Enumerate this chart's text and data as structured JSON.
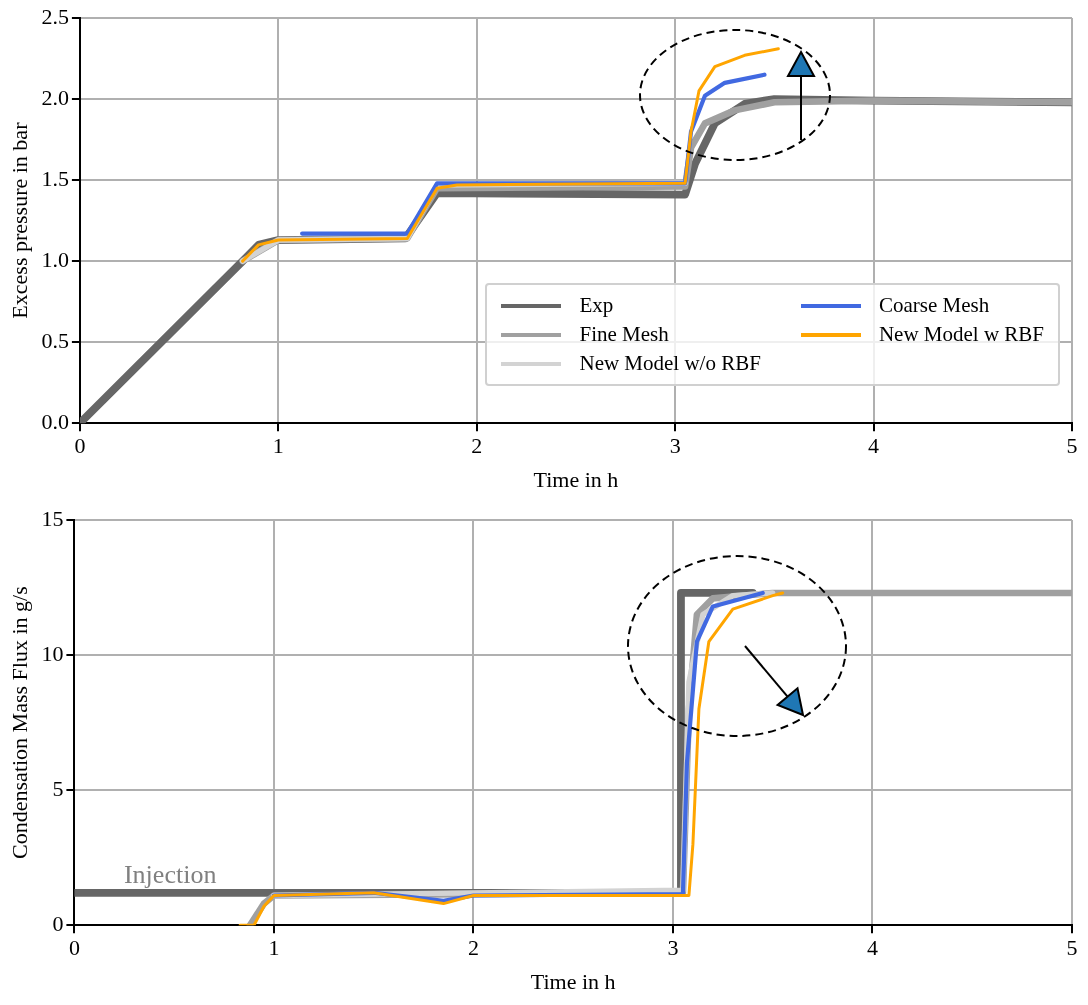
{
  "chart_data": [
    {
      "type": "line",
      "xlabel": "Time in h",
      "ylabel": "Excess pressure in bar",
      "xlim": [
        0,
        5
      ],
      "ylim": [
        0,
        2.5
      ],
      "xticks": [
        0,
        1,
        2,
        3,
        4,
        5
      ],
      "yticks": [
        {
          "value": 0,
          "label": "0.0"
        },
        {
          "value": 0.5,
          "label": "0.5"
        },
        {
          "value": 1,
          "label": "1.0"
        },
        {
          "value": 1.5,
          "label": "1.5"
        },
        {
          "value": 2,
          "label": "2.0"
        },
        {
          "value": 2.5,
          "label": "2.5"
        }
      ],
      "grid": true,
      "legend": "bottom right",
      "marker": "none",
      "line_style": "solid",
      "series": [
        {
          "name": "Exp",
          "color": "#666666",
          "x": [
            0,
            0.82,
            0.9,
            1.0,
            1.64,
            1.8,
            3.05,
            3.1,
            3.2,
            3.35,
            3.5,
            4,
            5
          ],
          "values": [
            0,
            1.0,
            1.1,
            1.13,
            1.14,
            1.42,
            1.41,
            1.6,
            1.85,
            1.97,
            2.0,
            1.99,
            1.98
          ]
        },
        {
          "name": "Fine Mesh",
          "color": "#a0a0a0",
          "x": [
            0.82,
            1.0,
            1.65,
            1.8,
            3.05,
            3.08,
            3.15,
            3.3,
            3.5,
            4,
            5
          ],
          "values": [
            1.0,
            1.13,
            1.14,
            1.45,
            1.46,
            1.7,
            1.85,
            1.93,
            1.98,
            1.99,
            1.98
          ]
        },
        {
          "name": "New Model w/o RBF",
          "color": "#d3d3d3",
          "x": [
            0.82,
            1.0,
            1.65,
            1.8,
            3.05
          ],
          "values": [
            1.0,
            1.13,
            1.14,
            1.47,
            1.48
          ]
        },
        {
          "name": "Coarse Mesh",
          "color": "#4169e1",
          "x": [
            1.12,
            1.65,
            1.8,
            3.05,
            3.08,
            3.15,
            3.25,
            3.45
          ],
          "values": [
            1.17,
            1.17,
            1.48,
            1.48,
            1.8,
            2.02,
            2.1,
            2.15
          ]
        },
        {
          "name": "New Model w RBF",
          "color": "#ffa500",
          "x": [
            0.82,
            0.9,
            1.0,
            1.65,
            1.8,
            1.9,
            3.05,
            3.08,
            3.12,
            3.2,
            3.35,
            3.52
          ],
          "values": [
            1.0,
            1.1,
            1.13,
            1.14,
            1.45,
            1.47,
            1.48,
            1.8,
            2.05,
            2.2,
            2.27,
            2.31
          ]
        }
      ]
    },
    {
      "type": "line",
      "xlabel": "Time in h",
      "ylabel": "Condensation Mass Flux in g/s",
      "xlim": [
        0,
        5
      ],
      "ylim": [
        0,
        15
      ],
      "xticks": [
        0,
        1,
        2,
        3,
        4,
        5
      ],
      "yticks": [
        0,
        5,
        10,
        15
      ],
      "grid": true,
      "marker": "none",
      "line_style": "solid",
      "annotations": [
        {
          "text": "Injection",
          "x": 0.48,
          "y": 1.2
        }
      ],
      "series": [
        {
          "color": "#666666",
          "x": [
            0,
            3.04,
            3.04,
            3.4
          ],
          "values": [
            1.2,
            1.2,
            12.3,
            12.3
          ]
        },
        {
          "color": "#a0a0a0",
          "x": [
            0.88,
            0.95,
            1.0,
            2.0,
            3.05,
            3.08,
            3.12,
            3.2,
            3.5,
            5
          ],
          "values": [
            0,
            0.8,
            1.1,
            1.15,
            1.2,
            8,
            11.5,
            12.1,
            12.3,
            12.3
          ]
        },
        {
          "color": "#d3d3d3",
          "x": [
            1.0,
            3.05,
            3.08,
            3.15,
            3.3,
            3.5
          ],
          "values": [
            1.1,
            1.3,
            9,
            11.5,
            12.2,
            12.3
          ]
        },
        {
          "color": "#4169e1",
          "x": [
            1.0,
            1.5,
            1.85,
            2.0,
            3.05,
            3.07,
            3.12,
            3.2,
            3.45
          ],
          "values": [
            1.1,
            1.2,
            0.9,
            1.1,
            1.15,
            6,
            10.5,
            11.8,
            12.3
          ]
        },
        {
          "color": "#ffa500",
          "x": [
            0.83,
            0.9,
            0.95,
            1.0,
            1.5,
            1.85,
            2.0,
            3.08,
            3.1,
            3.13,
            3.18,
            3.3,
            3.5,
            3.55
          ],
          "values": [
            0,
            0,
            0.7,
            1.1,
            1.2,
            0.8,
            1.1,
            1.1,
            3,
            8,
            10.5,
            11.7,
            12.2,
            12.3
          ]
        }
      ]
    }
  ]
}
